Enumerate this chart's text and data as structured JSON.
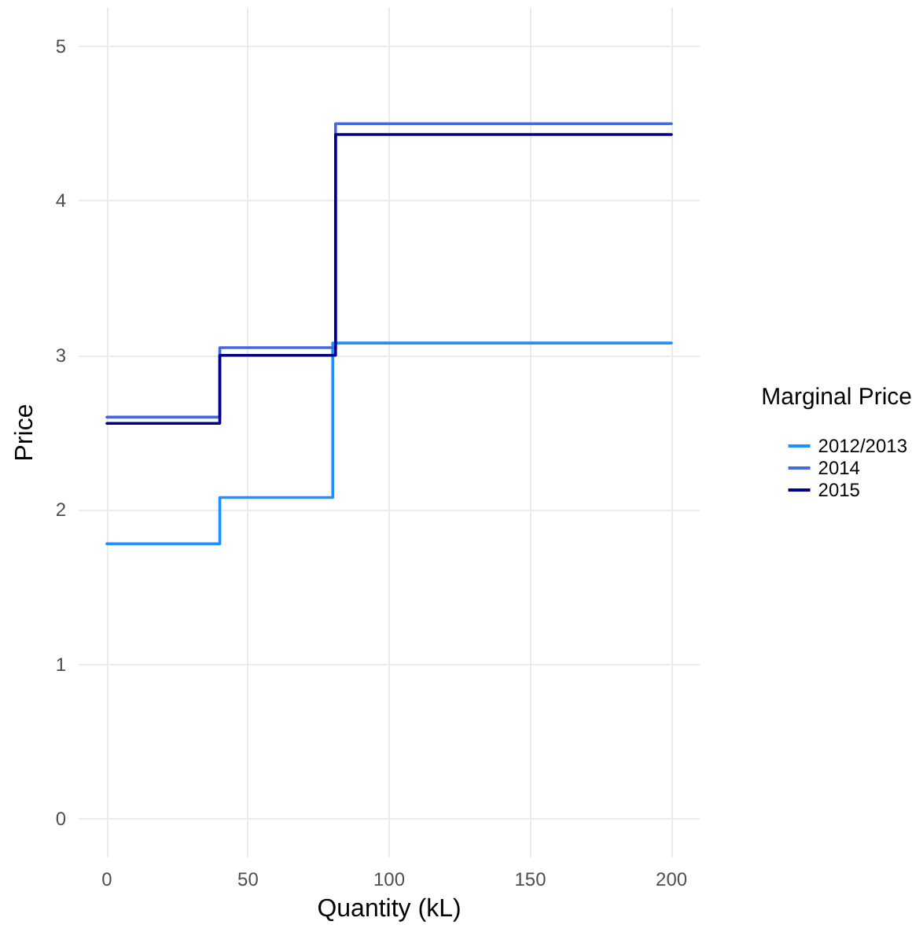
{
  "chart_data": {
    "type": "step",
    "xlabel": "Quantity (kL)",
    "ylabel": "Price",
    "legend_title": "Marginal Price",
    "series": [
      {
        "name": "2012/2013",
        "color": "#1e90ff",
        "x": [
          0,
          40,
          80,
          200
        ],
        "values": [
          1.78,
          2.08,
          3.08,
          3.08
        ]
      },
      {
        "name": "2014",
        "color": "#4169e1",
        "x": [
          0,
          40,
          81,
          200
        ],
        "values": [
          2.6,
          3.05,
          4.5,
          4.5
        ]
      },
      {
        "name": "2015",
        "color": "#00008b",
        "x": [
          0,
          40,
          81,
          200
        ],
        "values": [
          2.56,
          3.0,
          4.43,
          4.43
        ]
      }
    ],
    "xlim": [
      -10,
      210
    ],
    "xticks": [
      0,
      50,
      100,
      150,
      200
    ],
    "ylim": [
      -0.25,
      5.25
    ],
    "yticks": [
      0,
      1,
      2,
      3,
      4,
      5
    ],
    "grid": true,
    "legend": "right",
    "marker": "none",
    "line_style": "solid"
  }
}
